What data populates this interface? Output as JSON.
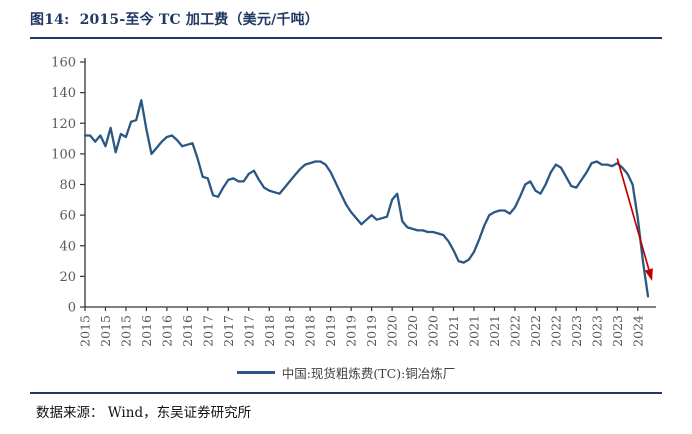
{
  "figure": {
    "title": "图14:  2015-至今 TC 加工费（美元/千吨）",
    "source": "数据来源： Wind，东吴证券研究所"
  },
  "chart_data": {
    "type": "line",
    "title": "2015-至今 TC 加工费（美元/千吨）",
    "ylabel": "",
    "xlabel": "",
    "ylim": [
      0,
      160
    ],
    "y_ticks": [
      0,
      20,
      40,
      60,
      80,
      100,
      120,
      140,
      160
    ],
    "grid": false,
    "legend_position": "bottom",
    "x_start": "2015-01",
    "x_step_months": 1,
    "x_tick_every_months": 4,
    "x_tick_labels": [
      "2015",
      "2015",
      "2015",
      "2016",
      "2016",
      "2016",
      "2017",
      "2017",
      "2017",
      "2018",
      "2018",
      "2018",
      "2019",
      "2019",
      "2019",
      "2020",
      "2020",
      "2020",
      "2021",
      "2021",
      "2021",
      "2022",
      "2022",
      "2022",
      "2023",
      "2023",
      "2023",
      "2024"
    ],
    "series": [
      {
        "name": "中国:现货粗炼费(TC):铜冶炼厂",
        "color": "#2A5784",
        "values": [
          112,
          112,
          108,
          112,
          105,
          117,
          101,
          113,
          111,
          121,
          122,
          135,
          116,
          100,
          104,
          108,
          111,
          112,
          109,
          105,
          106,
          107,
          97,
          85,
          84,
          73,
          72,
          78,
          83,
          84,
          82,
          82,
          87,
          89,
          83,
          78,
          76,
          75,
          74,
          78,
          82,
          86,
          90,
          93,
          94,
          95,
          95,
          93,
          88,
          81,
          74,
          67,
          62,
          58,
          54,
          57,
          60,
          57,
          58,
          59,
          70,
          74,
          56,
          52,
          51,
          50,
          50,
          49,
          49,
          48,
          47,
          43,
          37,
          30,
          29,
          31,
          36,
          44,
          53,
          60,
          62,
          63,
          63,
          61,
          65,
          72,
          80,
          82,
          76,
          74,
          80,
          88,
          93,
          91,
          85,
          79,
          78,
          83,
          88,
          94,
          95,
          93,
          93,
          92,
          94,
          91,
          87,
          80,
          58,
          30,
          7
        ]
      }
    ],
    "annotations": [
      {
        "type": "arrow",
        "color": "#C00000",
        "from_month_index": 104,
        "from_value": 97,
        "to_month_index": 110.8,
        "to_value": 17
      }
    ],
    "axis_color": "#333333",
    "tick_label_color": "#595959"
  }
}
